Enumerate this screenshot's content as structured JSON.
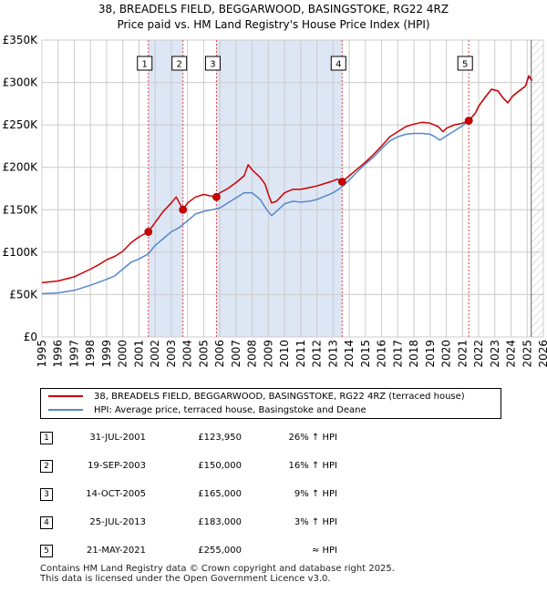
{
  "chart_data": {
    "type": "line",
    "title": "38, BREADELS FIELD, BEGGARWOOD, BASINGSTOKE, RG22 4RZ",
    "subtitle": "Price paid vs. HM Land Registry's House Price Index (HPI)",
    "x_ticks": [
      "1995",
      "1996",
      "1997",
      "1998",
      "1999",
      "2000",
      "2001",
      "2002",
      "2003",
      "2004",
      "2005",
      "2006",
      "2007",
      "2008",
      "2009",
      "2010",
      "2011",
      "2012",
      "2013",
      "2014",
      "2015",
      "2016",
      "2017",
      "2018",
      "2019",
      "2020",
      "2021",
      "2022",
      "2023",
      "2024",
      "2025",
      "2026"
    ],
    "y_ticks": [
      {
        "value": 0,
        "label": "£0"
      },
      {
        "value": 50000,
        "label": "£50K"
      },
      {
        "value": 100000,
        "label": "£100K"
      },
      {
        "value": 150000,
        "label": "£150K"
      },
      {
        "value": 200000,
        "label": "£200K"
      },
      {
        "value": 250000,
        "label": "£250K"
      },
      {
        "value": 300000,
        "label": "£300K"
      },
      {
        "value": 350000,
        "label": "£350K"
      }
    ],
    "xlim": [
      1995,
      2026
    ],
    "ylim": [
      0,
      350000
    ],
    "forecast_start": 2025.25,
    "shaded_ranges": [
      [
        2001.58,
        2003.72
      ],
      [
        2005.79,
        2013.56
      ]
    ],
    "series": [
      {
        "name": "38, BREADELS FIELD, BEGGARWOOD, BASINGSTOKE, RG22 4RZ (terraced house)",
        "color": "#cc0000",
        "points": [
          [
            1995.0,
            64000
          ],
          [
            1996.0,
            66000
          ],
          [
            1997.0,
            71000
          ],
          [
            1998.0,
            80000
          ],
          [
            1998.5,
            85000
          ],
          [
            1999.0,
            91000
          ],
          [
            1999.5,
            95000
          ],
          [
            2000.0,
            101000
          ],
          [
            2000.5,
            111000
          ],
          [
            2001.0,
            118000
          ],
          [
            2001.58,
            123950
          ],
          [
            2002.0,
            135000
          ],
          [
            2002.5,
            148000
          ],
          [
            2003.0,
            158000
          ],
          [
            2003.3,
            165000
          ],
          [
            2003.72,
            150000
          ],
          [
            2004.0,
            158000
          ],
          [
            2004.5,
            165000
          ],
          [
            2005.0,
            168000
          ],
          [
            2005.5,
            166000
          ],
          [
            2005.79,
            165000
          ],
          [
            2006.0,
            170000
          ],
          [
            2006.5,
            175000
          ],
          [
            2007.0,
            182000
          ],
          [
            2007.5,
            190000
          ],
          [
            2007.75,
            203000
          ],
          [
            2008.0,
            197000
          ],
          [
            2008.5,
            188000
          ],
          [
            2008.8,
            180000
          ],
          [
            2009.0,
            168000
          ],
          [
            2009.2,
            158000
          ],
          [
            2009.5,
            160000
          ],
          [
            2010.0,
            170000
          ],
          [
            2010.5,
            174000
          ],
          [
            2011.0,
            174000
          ],
          [
            2011.5,
            176000
          ],
          [
            2012.0,
            178000
          ],
          [
            2012.5,
            181000
          ],
          [
            2013.0,
            184000
          ],
          [
            2013.25,
            186000
          ],
          [
            2013.56,
            183000
          ],
          [
            2014.0,
            190000
          ],
          [
            2014.5,
            198000
          ],
          [
            2015.0,
            206000
          ],
          [
            2015.5,
            215000
          ],
          [
            2016.0,
            225000
          ],
          [
            2016.5,
            236000
          ],
          [
            2017.0,
            242000
          ],
          [
            2017.5,
            248000
          ],
          [
            2018.0,
            251000
          ],
          [
            2018.5,
            253000
          ],
          [
            2019.0,
            252000
          ],
          [
            2019.5,
            248000
          ],
          [
            2019.8,
            242000
          ],
          [
            2020.0,
            246000
          ],
          [
            2020.5,
            250000
          ],
          [
            2021.0,
            252000
          ],
          [
            2021.39,
            255000
          ],
          [
            2021.8,
            264000
          ],
          [
            2022.0,
            272000
          ],
          [
            2022.5,
            285000
          ],
          [
            2022.8,
            292000
          ],
          [
            2023.2,
            290000
          ],
          [
            2023.5,
            282000
          ],
          [
            2023.8,
            276000
          ],
          [
            2024.1,
            284000
          ],
          [
            2024.5,
            290000
          ],
          [
            2024.9,
            296000
          ],
          [
            2025.1,
            308000
          ],
          [
            2025.3,
            302000
          ]
        ]
      },
      {
        "name": "HPI: Average price, terraced house, Basingstoke and Deane",
        "color": "#5588cc",
        "points": [
          [
            1995.0,
            51000
          ],
          [
            1996.0,
            52000
          ],
          [
            1997.0,
            55000
          ],
          [
            1998.0,
            61000
          ],
          [
            1999.0,
            68000
          ],
          [
            1999.5,
            72000
          ],
          [
            2000.0,
            80000
          ],
          [
            2000.5,
            88000
          ],
          [
            2001.0,
            92000
          ],
          [
            2001.58,
            98000
          ],
          [
            2002.0,
            108000
          ],
          [
            2002.5,
            116000
          ],
          [
            2003.0,
            124000
          ],
          [
            2003.5,
            129000
          ],
          [
            2004.0,
            137000
          ],
          [
            2004.5,
            145000
          ],
          [
            2005.0,
            148000
          ],
          [
            2005.5,
            150000
          ],
          [
            2006.0,
            152000
          ],
          [
            2006.5,
            158000
          ],
          [
            2007.0,
            164000
          ],
          [
            2007.5,
            170000
          ],
          [
            2008.0,
            170000
          ],
          [
            2008.5,
            162000
          ],
          [
            2008.9,
            150000
          ],
          [
            2009.2,
            143000
          ],
          [
            2009.5,
            148000
          ],
          [
            2010.0,
            157000
          ],
          [
            2010.5,
            160000
          ],
          [
            2011.0,
            159000
          ],
          [
            2011.5,
            160000
          ],
          [
            2012.0,
            162000
          ],
          [
            2012.5,
            166000
          ],
          [
            2013.0,
            170000
          ],
          [
            2013.56,
            177000
          ],
          [
            2014.0,
            185000
          ],
          [
            2014.5,
            195000
          ],
          [
            2015.0,
            204000
          ],
          [
            2015.5,
            212000
          ],
          [
            2016.0,
            222000
          ],
          [
            2016.5,
            231000
          ],
          [
            2017.0,
            236000
          ],
          [
            2017.5,
            239000
          ],
          [
            2018.0,
            240000
          ],
          [
            2018.5,
            240000
          ],
          [
            2019.0,
            239000
          ],
          [
            2019.3,
            236000
          ],
          [
            2019.6,
            232000
          ],
          [
            2020.0,
            237000
          ],
          [
            2020.5,
            243000
          ],
          [
            2021.0,
            249000
          ],
          [
            2021.39,
            255000
          ],
          [
            2021.8,
            264000
          ],
          [
            2022.0,
            272000
          ],
          [
            2022.5,
            285000
          ],
          [
            2022.8,
            292000
          ],
          [
            2023.2,
            290000
          ],
          [
            2023.5,
            282000
          ],
          [
            2023.8,
            276000
          ],
          [
            2024.1,
            284000
          ],
          [
            2024.5,
            290000
          ],
          [
            2024.9,
            296000
          ],
          [
            2025.1,
            307000
          ],
          [
            2025.3,
            302000
          ]
        ]
      }
    ],
    "sales": [
      {
        "id": "1",
        "x": 2001.58,
        "price": 123950,
        "date": "31-JUL-2001",
        "price_label": "£123,950",
        "hpi": "26% ↑ HPI"
      },
      {
        "id": "2",
        "x": 2003.72,
        "price": 150000,
        "date": "19-SEP-2003",
        "price_label": "£150,000",
        "hpi": "16% ↑ HPI"
      },
      {
        "id": "3",
        "x": 2005.79,
        "price": 165000,
        "date": "14-OCT-2005",
        "price_label": "£165,000",
        "hpi": "9% ↑ HPI"
      },
      {
        "id": "4",
        "x": 2013.56,
        "price": 183000,
        "date": "25-JUL-2013",
        "price_label": "£183,000",
        "hpi": "3% ↑ HPI"
      },
      {
        "id": "5",
        "x": 2021.39,
        "price": 255000,
        "date": "21-MAY-2021",
        "price_label": "£255,000",
        "hpi": "≈ HPI"
      }
    ]
  },
  "legend": {
    "property_label": "38, BREADELS FIELD, BEGGARWOOD, BASINGSTOKE, RG22 4RZ (terraced house)",
    "hpi_label": "HPI: Average price, terraced house, Basingstoke and Deane"
  },
  "footer": {
    "line1": "Contains HM Land Registry data © Crown copyright and database right 2025.",
    "line2": "This data is licensed under the Open Government Licence v3.0."
  },
  "colors": {
    "property": "#cc0000",
    "hpi": "#5588cc",
    "shade": "#dde6f5",
    "grid": "#cccccc",
    "forecast_hatch": "#bbbbbb"
  }
}
